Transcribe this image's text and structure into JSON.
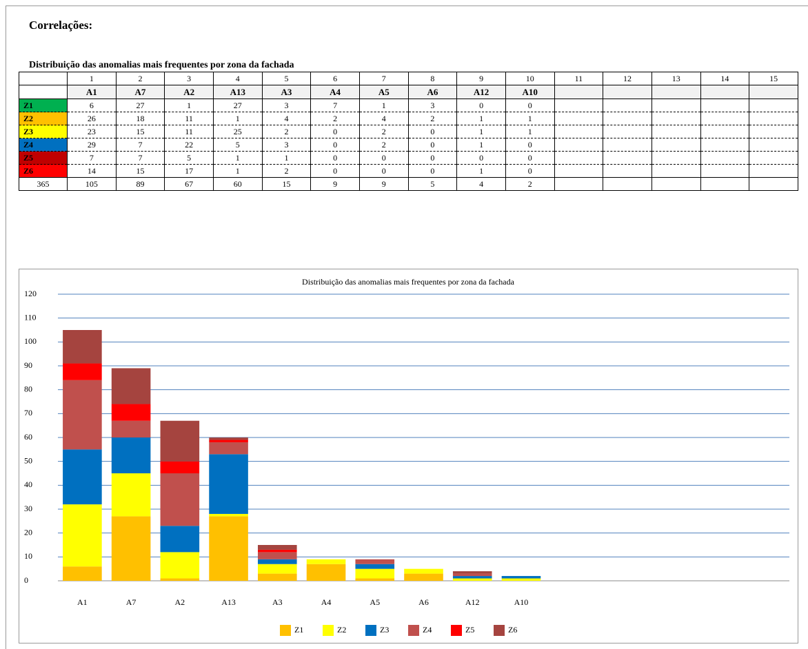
{
  "heading": "Correlações:",
  "table": {
    "title": "Distribuição das anomalias mais frequentes por zona da fachada",
    "columns": [
      1,
      2,
      3,
      4,
      5,
      6,
      7,
      8,
      9,
      10,
      11,
      12,
      13,
      14,
      15
    ],
    "codes": [
      "A1",
      "A7",
      "A2",
      "A13",
      "A3",
      "A4",
      "A5",
      "A6",
      "A12",
      "A10"
    ],
    "rows": [
      {
        "zone": "Z1",
        "color": "#00b050",
        "values": [
          6,
          27,
          1,
          27,
          3,
          7,
          1,
          3,
          0,
          0
        ]
      },
      {
        "zone": "Z2",
        "color": "#ffc000",
        "values": [
          26,
          18,
          11,
          1,
          4,
          2,
          4,
          2,
          1,
          1
        ]
      },
      {
        "zone": "Z3",
        "color": "#ffff00",
        "values": [
          23,
          15,
          11,
          25,
          2,
          0,
          2,
          0,
          1,
          1
        ]
      },
      {
        "zone": "Z4",
        "color": "#0070c0",
        "values": [
          29,
          7,
          22,
          5,
          3,
          0,
          2,
          0,
          1,
          0
        ]
      },
      {
        "zone": "Z5",
        "color": "#c00000",
        "values": [
          7,
          7,
          5,
          1,
          1,
          0,
          0,
          0,
          0,
          0
        ]
      },
      {
        "zone": "Z6",
        "color": "#ff0000",
        "values": [
          14,
          15,
          17,
          1,
          2,
          0,
          0,
          0,
          1,
          0
        ]
      }
    ],
    "totals": {
      "total": 365,
      "values": [
        105,
        89,
        67,
        60,
        15,
        9,
        9,
        5,
        4,
        2
      ]
    }
  },
  "chart_data": {
    "type": "stacked_bar",
    "title": "Distribuição  das anomalias mais frequentes por zona da fachada",
    "categories": [
      "A1",
      "A7",
      "A2",
      "A13",
      "A3",
      "A4",
      "A5",
      "A6",
      "A12",
      "A10",
      null,
      null,
      null,
      null,
      null
    ],
    "series": [
      {
        "name": "Z1",
        "color": "#ffc000",
        "values": [
          6,
          27,
          1,
          27,
          3,
          7,
          1,
          3,
          0,
          0,
          null,
          null,
          null,
          null,
          null
        ]
      },
      {
        "name": "Z2",
        "color": "#ffff00",
        "values": [
          26,
          18,
          11,
          1,
          4,
          2,
          4,
          2,
          1,
          1,
          null,
          null,
          null,
          null,
          null
        ]
      },
      {
        "name": "Z3",
        "color": "#0070c0",
        "values": [
          23,
          15,
          11,
          25,
          2,
          0,
          2,
          0,
          1,
          1,
          null,
          null,
          null,
          null,
          null
        ]
      },
      {
        "name": "Z4",
        "color": "#c0504d",
        "values": [
          29,
          7,
          22,
          5,
          3,
          0,
          2,
          0,
          1,
          0,
          null,
          null,
          null,
          null,
          null
        ]
      },
      {
        "name": "Z5",
        "color": "#ff0000",
        "values": [
          7,
          7,
          5,
          1,
          1,
          0,
          0,
          0,
          0,
          0,
          null,
          null,
          null,
          null,
          null
        ]
      },
      {
        "name": "Z6",
        "color": "#a5443f",
        "values": [
          14,
          15,
          17,
          1,
          2,
          0,
          0,
          0,
          1,
          0,
          null,
          null,
          null,
          null,
          null
        ]
      }
    ],
    "ylim": [
      0,
      120
    ],
    "yticks": [
      0,
      10,
      20,
      30,
      40,
      50,
      60,
      70,
      80,
      90,
      100,
      110,
      120
    ],
    "grid": true,
    "grid_color": "#4f81bd",
    "legend": "bottom"
  }
}
